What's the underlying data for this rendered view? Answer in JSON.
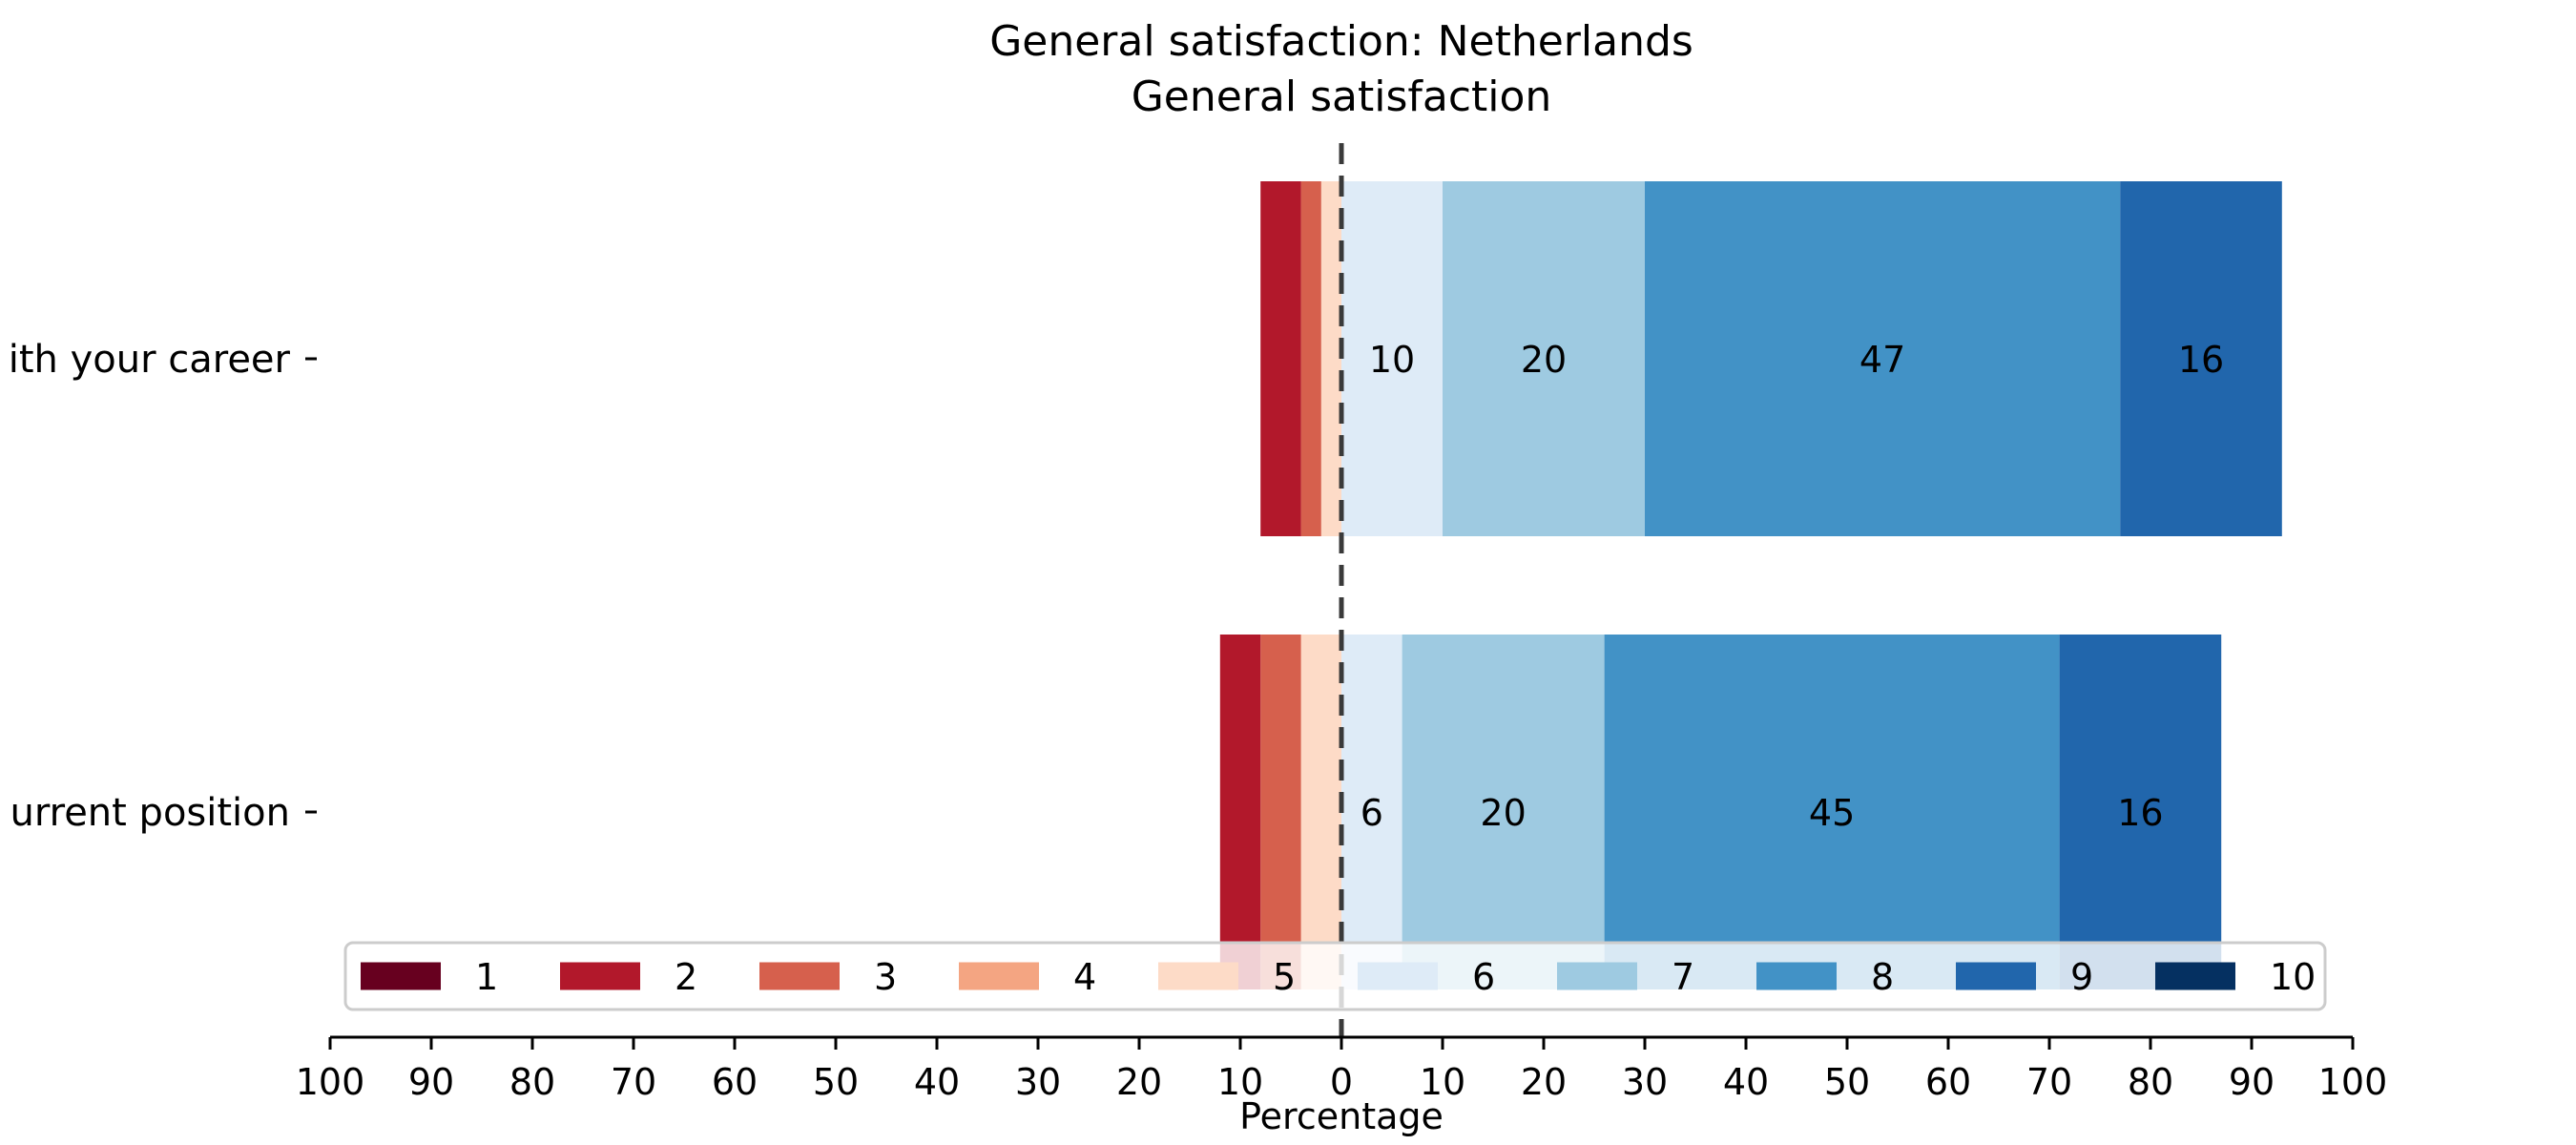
{
  "chart_data": {
    "type": "bar",
    "orientation": "horizontal",
    "stacked": "diverging",
    "title": "General satisfaction: Netherlands",
    "subtitle": "General satisfaction",
    "xlabel": "Percentage",
    "xlim": [
      -100,
      100
    ],
    "x_ticks": [
      -100,
      -90,
      -80,
      -70,
      -60,
      -50,
      -40,
      -30,
      -20,
      -10,
      0,
      10,
      20,
      30,
      40,
      50,
      60,
      70,
      80,
      90,
      100
    ],
    "x_tick_labels": [
      "100",
      "90",
      "80",
      "70",
      "60",
      "50",
      "40",
      "30",
      "20",
      "10",
      "0",
      "10",
      "20",
      "30",
      "40",
      "50",
      "60",
      "70",
      "80",
      "90",
      "100"
    ],
    "center_line": 0,
    "categories": [
      "ith your career",
      "urrent position"
    ],
    "legend_position": "bottom-center",
    "series": [
      {
        "name": "1",
        "color": "#67001f",
        "side": "negative",
        "values": [
          0,
          0
        ]
      },
      {
        "name": "2",
        "color": "#b2182b",
        "side": "negative",
        "values": [
          4,
          4
        ]
      },
      {
        "name": "3",
        "color": "#d6604d",
        "side": "negative",
        "values": [
          2,
          4
        ]
      },
      {
        "name": "4",
        "color": "#f4a582",
        "side": "negative",
        "values": [
          0,
          0
        ]
      },
      {
        "name": "5",
        "color": "#fddbc7",
        "side": "negative",
        "values": [
          2,
          4
        ]
      },
      {
        "name": "6",
        "color": "#deebf7",
        "side": "positive",
        "values": [
          10,
          6
        ]
      },
      {
        "name": "7",
        "color": "#9ecae1",
        "side": "positive",
        "values": [
          20,
          20
        ]
      },
      {
        "name": "8",
        "color": "#4292c6",
        "side": "positive",
        "values": [
          47,
          45
        ]
      },
      {
        "name": "9",
        "color": "#2166ac",
        "side": "positive",
        "values": [
          16,
          16
        ]
      },
      {
        "name": "10",
        "color": "#053061",
        "side": "positive",
        "values": [
          0,
          0
        ]
      }
    ],
    "bar_labels": [
      [
        "",
        "",
        "",
        "",
        "",
        "10",
        "20",
        "47",
        "16",
        ""
      ],
      [
        "",
        "",
        "",
        "",
        "",
        "6",
        "20",
        "45",
        "16",
        ""
      ]
    ]
  }
}
